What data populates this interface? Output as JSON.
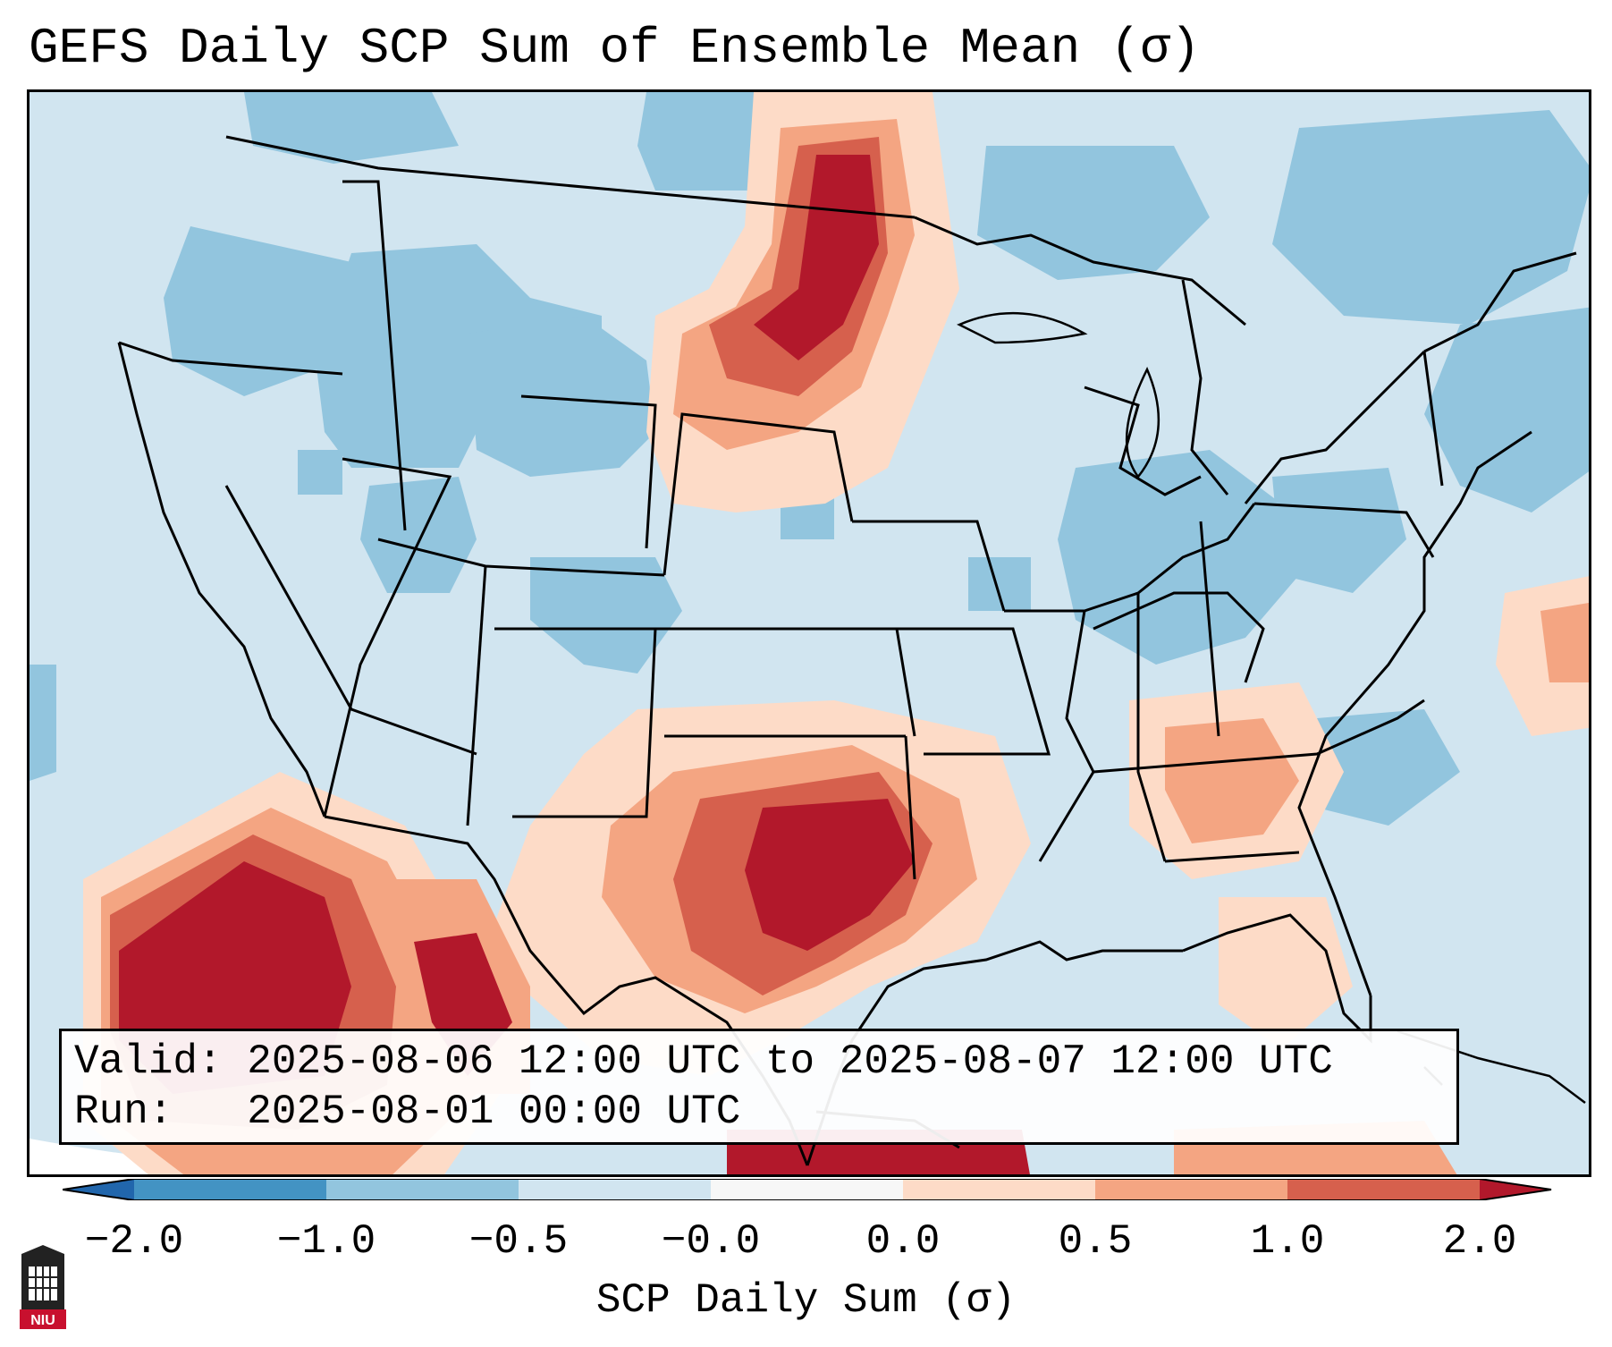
{
  "title": "GEFS Daily SCP Sum of Ensemble Mean (σ)",
  "info": {
    "valid_label": "Valid:",
    "valid_text": "2025-08-06 12:00 UTC to 2025-08-07 12:00 UTC",
    "run_label": "Run:",
    "run_text": "2025-08-01 00:00 UTC"
  },
  "colorbar": {
    "label": "SCP Daily Sum (σ)",
    "ticks": [
      "−2.0",
      "−1.0",
      "−0.5",
      "−0.0",
      "0.0",
      "0.5",
      "1.0",
      "2.0"
    ],
    "bins": [
      {
        "from": -2.0,
        "to": -1.0,
        "color": "#4393c3"
      },
      {
        "from": -1.0,
        "to": -0.5,
        "color": "#92c5de"
      },
      {
        "from": -0.5,
        "to": -0.0,
        "color": "#d1e5f0"
      },
      {
        "from": -0.0,
        "to": 0.0,
        "color": "#f7f7f7"
      },
      {
        "from": 0.0,
        "to": 0.5,
        "color": "#fddbc7"
      },
      {
        "from": 0.5,
        "to": 1.0,
        "color": "#f4a582"
      },
      {
        "from": 1.0,
        "to": 2.0,
        "color": "#d6604d"
      }
    ],
    "under_color": "#2166ac",
    "over_color": "#b2182b"
  },
  "colors": {
    "blue_dark": "#92c5de",
    "blue_light": "#d1e5f0",
    "red_light": "#fddbc7",
    "red_mid": "#f4a582",
    "red_strong": "#d6604d",
    "red_dark": "#b2182b"
  },
  "logo": {
    "text": "NIU",
    "icon": "niu-logo-icon"
  }
}
